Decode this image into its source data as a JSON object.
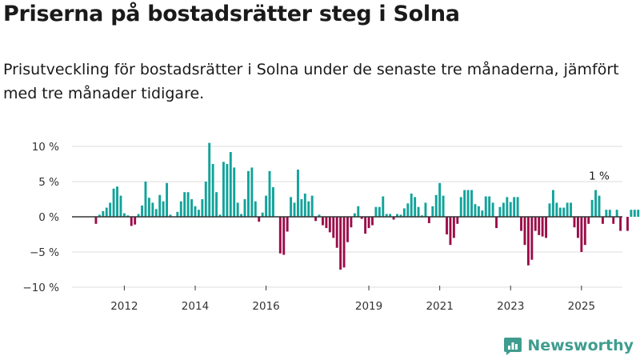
{
  "title": "Priserna på bostadsrätter steg i Solna",
  "subtitle": "Prisutveckling för bostadsrätter i Solna under de senaste tre månaderna, jämfört med tre månader tidigare.",
  "brand": {
    "name": "Newsworthy",
    "icon": "newsworthy-logo-icon",
    "color": "#3f9d8f"
  },
  "colors": {
    "positive": "#12a39a",
    "negative": "#9b0d4a",
    "grid": "#dddddd",
    "zero_line": "#333333"
  },
  "chart_data": {
    "type": "bar",
    "ylim": [
      -10,
      11
    ],
    "yticks": [
      -10,
      -5,
      0,
      5,
      10
    ],
    "ytick_labels": [
      "−10 %",
      "−5 %",
      "0 %",
      "5 %",
      "10 %"
    ],
    "xticks": [
      {
        "label": "2012",
        "index": 8
      },
      {
        "label": "2014",
        "index": 28
      },
      {
        "label": "2016",
        "index": 48
      },
      {
        "label": "2019",
        "index": 77
      },
      {
        "label": "2021",
        "index": 97
      },
      {
        "label": "2023",
        "index": 117
      },
      {
        "label": "2025",
        "index": 137
      }
    ],
    "annotation": {
      "label": "1 %",
      "index": 142
    },
    "values": [
      -1.0,
      0.3,
      0.8,
      1.3,
      2.0,
      4.0,
      4.3,
      3.0,
      0.5,
      0.2,
      -1.3,
      -1.1,
      0.4,
      1.6,
      5.0,
      2.7,
      2.0,
      1.1,
      3.1,
      2.2,
      4.8,
      0.3,
      0,
      0.7,
      2.2,
      3.5,
      3.5,
      2.5,
      1.5,
      1.0,
      2.5,
      5.0,
      10.5,
      7.5,
      3.5,
      0.3,
      7.8,
      7.5,
      9.2,
      7.0,
      2.0,
      0.4,
      2.5,
      6.5,
      7.0,
      2.2,
      -0.7,
      0.6,
      3.0,
      6.5,
      4.2,
      0,
      -5.2,
      -5.4,
      -2.1,
      2.8,
      2.0,
      6.7,
      2.5,
      3.3,
      2.2,
      3.0,
      -0.6,
      0.3,
      -1.2,
      -1.6,
      -2.2,
      -3.0,
      -4.4,
      -7.5,
      -7.2,
      -3.6,
      -1.5,
      0.5,
      1.5,
      -0.3,
      -2.4,
      -1.6,
      -1.2,
      1.4,
      1.4,
      2.9,
      0.4,
      0.4,
      -0.4,
      0.4,
      0.3,
      1.2,
      1.9,
      3.3,
      2.8,
      1.4,
      0.2,
      2.0,
      -0.9,
      1.5,
      3.1,
      4.8,
      3.0,
      -2.5,
      -4.0,
      -3.0,
      -1.0,
      2.8,
      3.8,
      3.8,
      3.8,
      1.8,
      1.5,
      0.9,
      2.9,
      2.9,
      2.0,
      -1.6,
      1.4,
      2.0,
      2.8,
      2.1,
      2.8,
      2.8,
      -2.0,
      -4.0,
      -6.9,
      -6.1,
      -2.0,
      -2.6,
      -2.8,
      -3.0,
      1.9,
      3.8,
      2.0,
      1.3,
      1.3,
      2.0,
      2.0,
      -1.5,
      -3.0,
      -5.0,
      -4.0,
      -1.0,
      2.4,
      3.8,
      3.0,
      -1.0,
      1.0,
      1.0,
      -1.0,
      1.0,
      -2.0,
      0,
      -2.0,
      1.0,
      1.0,
      1.0
    ]
  }
}
